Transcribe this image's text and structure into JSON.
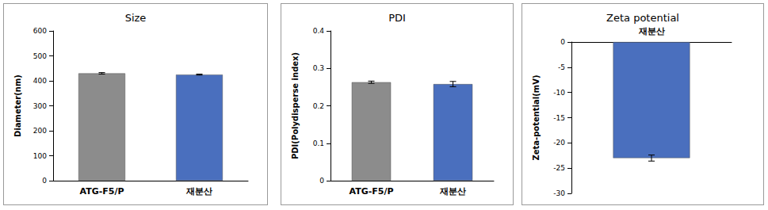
{
  "chart_data": [
    {
      "type": "bar",
      "title": "Size",
      "y_label": "Diameter(nm)",
      "categories": [
        "ATG-F5/P",
        "재분산"
      ],
      "values": [
        430,
        425
      ],
      "errors": [
        3,
        2
      ],
      "colors": [
        "#8c8c8c",
        "#4a6fbe"
      ],
      "ylim": [
        0,
        600
      ],
      "yticks": [
        0,
        100,
        200,
        300,
        400,
        500,
        600
      ],
      "grid": false
    },
    {
      "type": "bar",
      "title": "PDI",
      "y_label": "PDI(Polydisperse index)",
      "categories": [
        "ATG-F5/P",
        "재분산"
      ],
      "values": [
        0.263,
        0.258
      ],
      "errors": [
        0.003,
        0.007
      ],
      "colors": [
        "#8c8c8c",
        "#4a6fbe"
      ],
      "ylim": [
        0,
        0.4
      ],
      "yticks": [
        0,
        0.1,
        0.2,
        0.3,
        0.4
      ],
      "grid": false
    },
    {
      "type": "bar",
      "title": "Zeta potential",
      "y_label": "Zeta-potential(mV)",
      "categories": [
        "재분산"
      ],
      "values": [
        -23
      ],
      "errors": [
        0.6
      ],
      "colors": [
        "#4a6fbe"
      ],
      "ylim": [
        -30,
        0
      ],
      "yticks": [
        -30,
        -25,
        -20,
        -15,
        -10,
        -5,
        0
      ],
      "grid": false
    }
  ]
}
